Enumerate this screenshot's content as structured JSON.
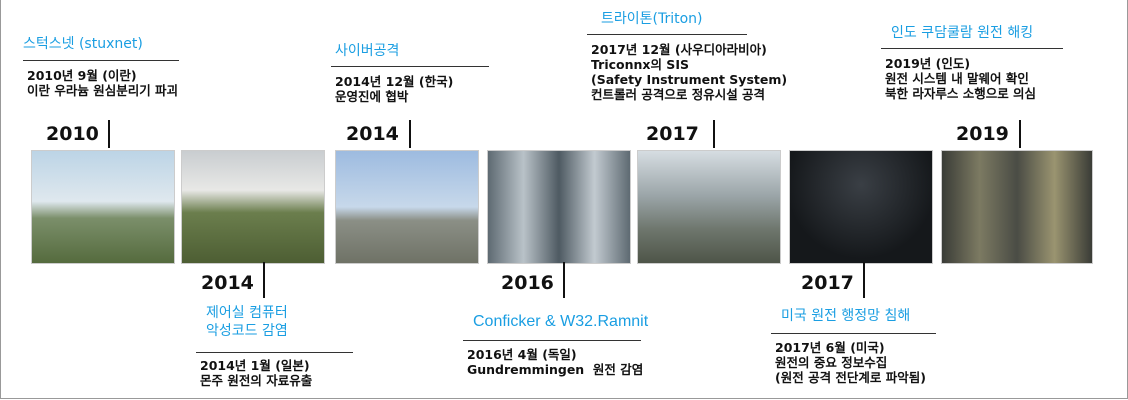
{
  "events": [
    {
      "year": "2010",
      "title": "스턱스넷 (stuxnet)",
      "details": [
        "2010년 9월 (이란)",
        "이란 우라늄 원심분리기 파괴"
      ]
    },
    {
      "year": "2014",
      "title": "사이버공격",
      "details": [
        "2014년 12월 (한국)",
        "운영진에 협박"
      ]
    },
    {
      "year": "2017",
      "title": "트라이톤(Triton)",
      "details": [
        "2017년 12월 (사우디아라비아)",
        "Triconnx의 SIS",
        "(Safety Instrument System)",
        "컨트롤러 공격으로 정유시설 공격"
      ]
    },
    {
      "year": "2019",
      "title": "인도 쿠담쿨람 원전 해킹",
      "details": [
        "2019년 (인도)",
        "원전 시스템 내 말웨어 확인",
        "북한 라자루스 소행으로 의심"
      ]
    },
    {
      "year": "2014",
      "title": "제어실 컴퓨터\n악성코드 감염",
      "details": [
        "2014년 1월 (일본)",
        "몬주 원전의 자료유출"
      ]
    },
    {
      "year": "2016",
      "title": "Conficker & W32.Ramnit",
      "details": [
        "2016년 4월 (독일)",
        "Gundremmingen  원전 감염"
      ]
    },
    {
      "year": "2017",
      "title": "미국 원전 행정망 침해",
      "details": [
        "2017년 6월 (미국)",
        "원전의 중요 정보수집",
        "(원전 공격 전단계로 파악됨)"
      ]
    }
  ]
}
